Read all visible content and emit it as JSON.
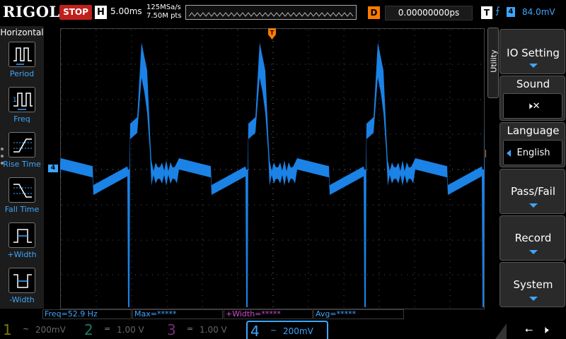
{
  "brand": "RIGOL",
  "run_state": "STOP",
  "timebase": {
    "label": "H",
    "value": "5.00ms",
    "sample_rate": "125MSa/s",
    "points": "7.50M pts"
  },
  "trigger_pos_label": "T",
  "delay": {
    "label": "D",
    "value": "0.00000000ps"
  },
  "trigger": {
    "label": "T",
    "edge_icon": "rising-edge-icon",
    "source": "4",
    "level": "84.0mV"
  },
  "left_menu": {
    "title": "Horizontal",
    "items": [
      {
        "label": "Period",
        "icon": "period-icon"
      },
      {
        "label": "Freq",
        "icon": "freq-icon"
      },
      {
        "label": "Rise Time",
        "icon": "rise-time-icon"
      },
      {
        "label": "Fall Time",
        "icon": "fall-time-icon"
      },
      {
        "label": "+Width",
        "icon": "pos-width-icon"
      },
      {
        "label": "-Width",
        "icon": "neg-width-icon"
      }
    ]
  },
  "right_menu": {
    "tab": "Utility",
    "items": [
      {
        "label": "IO Setting"
      },
      {
        "label": "Sound",
        "value_icon": "speaker-mute-icon"
      },
      {
        "label": "Language",
        "value": "English"
      },
      {
        "label": "Pass/Fail"
      },
      {
        "label": "Record"
      },
      {
        "label": "System"
      }
    ]
  },
  "measurements": [
    {
      "text": "Freq=52.9 Hz",
      "color": "#3da6ff"
    },
    {
      "text": "Max=*****",
      "color": "#3da6ff"
    },
    {
      "text": "+Width=*****",
      "color": "#d14bd1"
    },
    {
      "text": "Avg=*****",
      "color": "#3da6ff"
    }
  ],
  "channels": [
    {
      "num": "1",
      "coupling": "~",
      "scale": "200mV",
      "color": "#c8c800",
      "active": false
    },
    {
      "num": "2",
      "coupling": "=",
      "scale": "1.00 V",
      "color": "#2fbfa0",
      "active": false
    },
    {
      "num": "3",
      "coupling": "=",
      "scale": "1.00 V",
      "color": "#c040c0",
      "active": false
    },
    {
      "num": "4",
      "coupling": "~",
      "scale": "200mV",
      "color": "#3da6ff",
      "active": true
    }
  ],
  "ch4_marker": "4",
  "trigger_level_marker": "T",
  "colors": {
    "trace": "#1e90ff",
    "accent": "#3da6ff",
    "stop": "#c0201c",
    "trigger": "#ff7a00"
  }
}
